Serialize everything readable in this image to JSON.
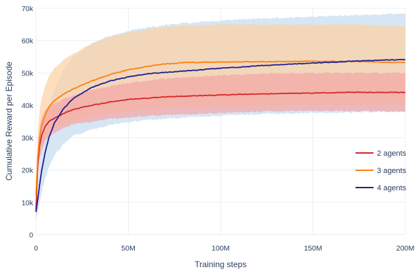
{
  "chart_data": {
    "type": "line",
    "title": "",
    "xlabel": "Training steps",
    "ylabel": "Cumulative Reward per Episode",
    "xlim": [
      0,
      200000000
    ],
    "ylim": [
      0,
      70000
    ],
    "grid": true,
    "legend_position": "right",
    "x_ticks": [
      {
        "value": 0,
        "label": "0"
      },
      {
        "value": 50000000,
        "label": "50M"
      },
      {
        "value": 100000000,
        "label": "100M"
      },
      {
        "value": 150000000,
        "label": "150M"
      },
      {
        "value": 200000000,
        "label": "200M"
      }
    ],
    "y_ticks": [
      {
        "value": 0,
        "label": "0"
      },
      {
        "value": 10000,
        "label": "10k"
      },
      {
        "value": 20000,
        "label": "20k"
      },
      {
        "value": 30000,
        "label": "30k"
      },
      {
        "value": 40000,
        "label": "40k"
      },
      {
        "value": 50000,
        "label": "50k"
      },
      {
        "value": 60000,
        "label": "60k"
      },
      {
        "value": 70000,
        "label": "70k"
      }
    ],
    "x": [
      0,
      1000000,
      2000000,
      3000000,
      5000000,
      7000000,
      10000000,
      15000000,
      20000000,
      30000000,
      40000000,
      50000000,
      60000000,
      70000000,
      80000000,
      90000000,
      100000000,
      110000000,
      120000000,
      130000000,
      140000000,
      150000000,
      160000000,
      170000000,
      180000000,
      190000000,
      200000000
    ],
    "series": [
      {
        "name": "2 agents",
        "color": "#d62728",
        "band_color": "#f4a5a5",
        "values": [
          7500,
          22000,
          27500,
          30500,
          33500,
          35000,
          36000,
          37500,
          38700,
          40000,
          41000,
          41800,
          42200,
          42600,
          42800,
          43000,
          43200,
          43400,
          43500,
          43600,
          43700,
          43800,
          43900,
          44000,
          44000,
          44000,
          44000
        ],
        "lower": [
          6000,
          18000,
          23000,
          26000,
          29000,
          30500,
          31500,
          33000,
          34000,
          35000,
          35800,
          36200,
          36600,
          37000,
          37200,
          37400,
          37600,
          37800,
          38000,
          38100,
          38200,
          38300,
          38300,
          38200,
          38200,
          38100,
          38000
        ],
        "upper": [
          9000,
          27000,
          33000,
          36000,
          38500,
          39500,
          40500,
          42000,
          43000,
          44800,
          45800,
          46800,
          47600,
          48200,
          48700,
          49000,
          49300,
          49500,
          49700,
          49800,
          49900,
          50000,
          50000,
          50000,
          50000,
          50000,
          50000
        ]
      },
      {
        "name": "3 agents",
        "color": "#ff7f0e",
        "band_color": "#fdd0a2",
        "values": [
          12000,
          24000,
          30000,
          33500,
          37000,
          39500,
          41500,
          43500,
          45000,
          47500,
          49500,
          51000,
          52000,
          52800,
          53200,
          53300,
          53400,
          53400,
          53500,
          53500,
          53600,
          53600,
          53600,
          53600,
          53500,
          53300,
          53200
        ],
        "lower": [
          9000,
          18000,
          23000,
          26000,
          29500,
          31000,
          32500,
          34000,
          35000,
          36500,
          37500,
          38200,
          38600,
          39000,
          39300,
          39500,
          39700,
          39800,
          39900,
          40000,
          40100,
          40200,
          40200,
          40200,
          40200,
          40200,
          40100
        ],
        "upper": [
          15000,
          32000,
          38500,
          42000,
          46000,
          49000,
          51500,
          54000,
          56000,
          59000,
          61000,
          62500,
          63500,
          64200,
          64600,
          64800,
          65000,
          65000,
          65000,
          65000,
          65000,
          65000,
          65000,
          65000,
          64900,
          64700,
          64500
        ]
      },
      {
        "name": "4 agents",
        "color": "#1f1f8f",
        "band_color": "#c6dbef",
        "values": [
          7000,
          11000,
          15500,
          19500,
          25500,
          30000,
          34500,
          39000,
          42000,
          45500,
          47500,
          48800,
          49700,
          50200,
          50600,
          51000,
          51500,
          51800,
          52200,
          52500,
          52800,
          53100,
          53300,
          53600,
          53800,
          54000,
          54100
        ],
        "lower": [
          4500,
          7000,
          10000,
          13000,
          17500,
          21000,
          24500,
          28000,
          30500,
          32500,
          34000,
          34800,
          35400,
          35800,
          36200,
          36500,
          36800,
          37000,
          37200,
          37400,
          37500,
          37600,
          37700,
          37800,
          37900,
          38000,
          38100
        ],
        "upper": [
          9500,
          16000,
          22000,
          27000,
          34000,
          39500,
          45000,
          51000,
          55000,
          59000,
          61500,
          63000,
          64000,
          64800,
          65400,
          65800,
          66200,
          66500,
          66800,
          67000,
          67200,
          67400,
          67600,
          67800,
          68000,
          68200,
          68400
        ]
      }
    ]
  }
}
